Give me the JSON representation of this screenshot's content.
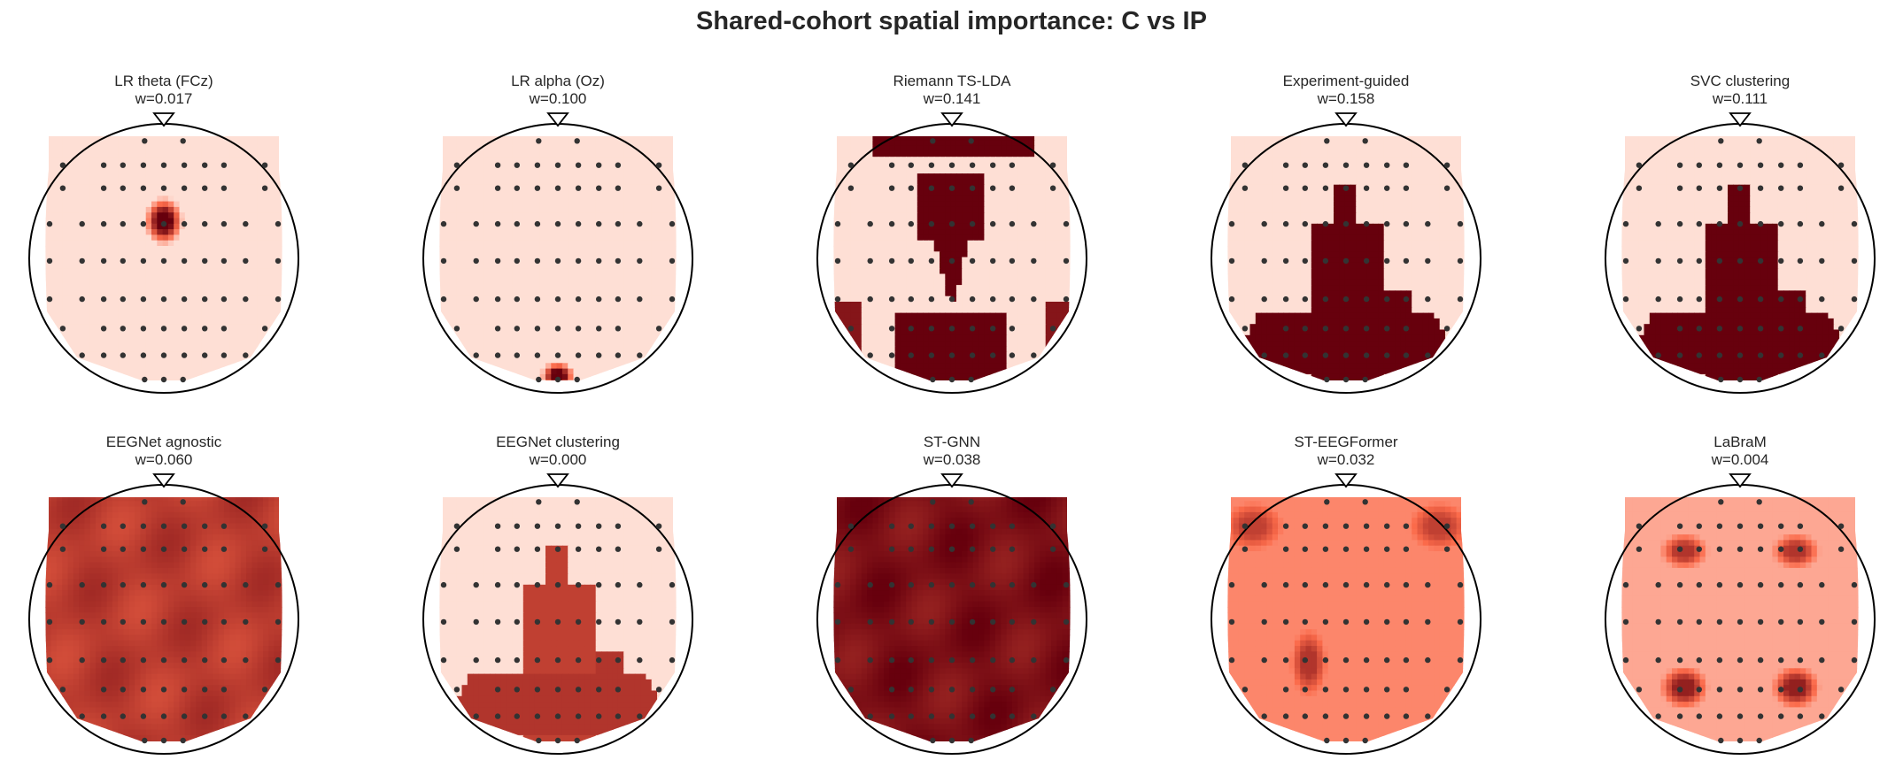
{
  "figure": {
    "title": "Shared-cohort spatial importance: C vs IP"
  },
  "chart_data": [
    {
      "type": "heatmap",
      "title": "LR theta (FCz)",
      "subtitle": "w=0.017",
      "hotspots": [
        {
          "region": "FCz",
          "intensity": 1.0
        }
      ],
      "background_intensity": 0.08
    },
    {
      "type": "heatmap",
      "title": "LR alpha (Oz)",
      "subtitle": "w=0.100",
      "hotspots": [
        {
          "region": "Oz",
          "intensity": 1.0
        }
      ],
      "background_intensity": 0.08
    },
    {
      "type": "heatmap",
      "title": "Riemann TS-LDA",
      "subtitle": "w=0.141",
      "hotspots": [
        {
          "region": "frontal-edge",
          "intensity": 1.0
        },
        {
          "region": "fronto-central",
          "intensity": 1.0
        },
        {
          "region": "parieto-occipital",
          "intensity": 1.0
        },
        {
          "region": "left-temporal",
          "intensity": 0.9
        },
        {
          "region": "right-temporal",
          "intensity": 0.9
        }
      ],
      "background_intensity": 0.08
    },
    {
      "type": "heatmap",
      "title": "Experiment-guided",
      "subtitle": "w=0.158",
      "hotspots": [
        {
          "region": "central-midline",
          "intensity": 1.0
        },
        {
          "region": "posterior",
          "intensity": 1.0
        }
      ],
      "background_intensity": 0.08
    },
    {
      "type": "heatmap",
      "title": "SVC clustering",
      "subtitle": "w=0.111",
      "hotspots": [
        {
          "region": "central-midline",
          "intensity": 1.0
        },
        {
          "region": "posterior",
          "intensity": 1.0
        }
      ],
      "background_intensity": 0.08
    },
    {
      "type": "heatmap",
      "title": "EEGNet agnostic",
      "subtitle": "w=0.060",
      "hotspots": [
        {
          "region": "whole-scalp",
          "intensity": 0.72
        }
      ],
      "background_intensity": 0.72
    },
    {
      "type": "heatmap",
      "title": "EEGNet clustering",
      "subtitle": "w=0.000",
      "hotspots": [
        {
          "region": "central-midline",
          "intensity": 0.7
        },
        {
          "region": "posterior",
          "intensity": 0.75
        }
      ],
      "background_intensity": 0.08
    },
    {
      "type": "heatmap",
      "title": "ST-GNN",
      "subtitle": "w=0.038",
      "hotspots": [
        {
          "region": "whole-scalp",
          "intensity": 0.93
        }
      ],
      "background_intensity": 0.93
    },
    {
      "type": "heatmap",
      "title": "ST-EEGFormer",
      "subtitle": "w=0.032",
      "hotspots": [
        {
          "region": "frontal-corners",
          "intensity": 0.7
        },
        {
          "region": "left-parietal",
          "intensity": 0.75
        }
      ],
      "background_intensity": 0.4
    },
    {
      "type": "heatmap",
      "title": "LaBraM",
      "subtitle": "w=0.004",
      "hotspots": [
        {
          "region": "frontal-lateral",
          "intensity": 0.75
        },
        {
          "region": "parietal-lateral",
          "intensity": 0.85
        }
      ],
      "background_intensity": 0.28
    }
  ],
  "colors": {
    "title_text": "#262626",
    "scale_low": "#fff5f0",
    "scale_mid": "#fb6a4a",
    "scale_high": "#67000d",
    "electrode": "#333333",
    "head_outline": "#000000"
  }
}
